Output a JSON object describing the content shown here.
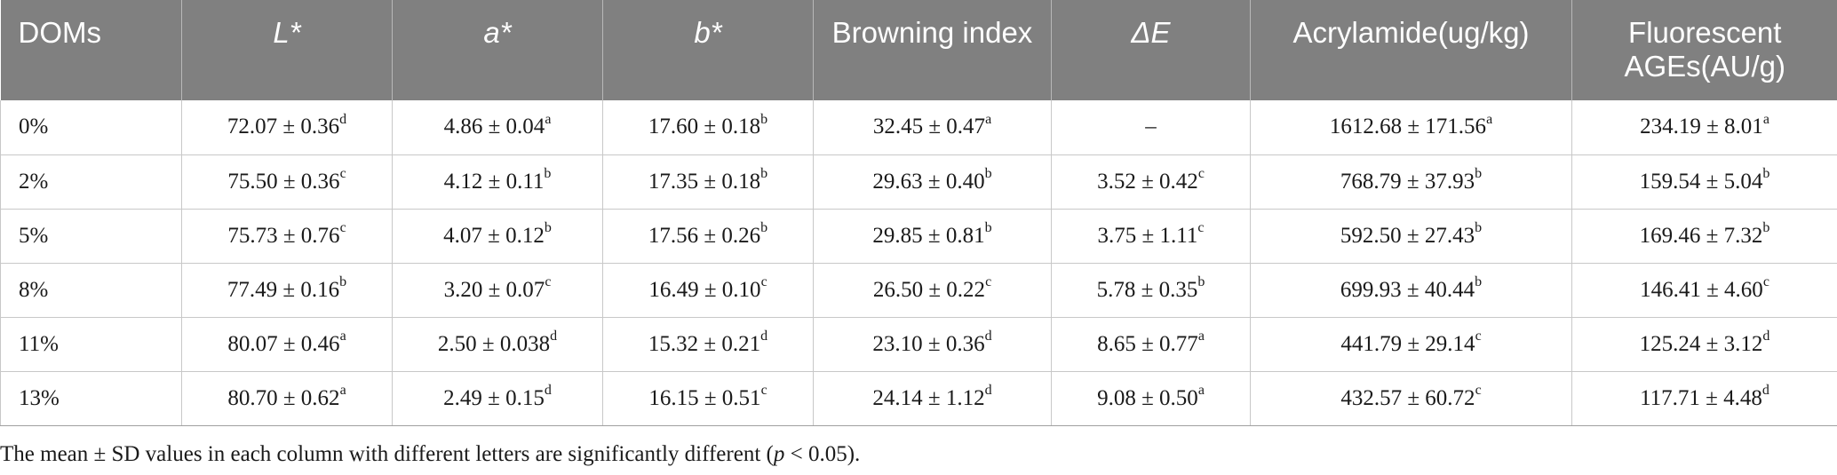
{
  "table": {
    "headers": [
      {
        "text": "DOMs",
        "italic": false,
        "align": "left"
      },
      {
        "text": "L*",
        "italic": true,
        "align": "center"
      },
      {
        "text": "a*",
        "italic": true,
        "align": "center"
      },
      {
        "text": "b*",
        "italic": true,
        "align": "center"
      },
      {
        "text": "Browning index",
        "italic": false,
        "align": "center"
      },
      {
        "text": "ΔE",
        "italic": true,
        "align": "center"
      },
      {
        "text": "Acrylamide(ug/kg)",
        "italic": false,
        "align": "center"
      },
      {
        "text": "Fluorescent AGEs(AU/g)",
        "italic": false,
        "align": "center"
      }
    ],
    "rows": [
      {
        "dom": "0%",
        "cells": [
          {
            "value": "72.07 ± 0.36",
            "sup": "d"
          },
          {
            "value": "4.86 ± 0.04",
            "sup": "a"
          },
          {
            "value": "17.60 ± 0.18",
            "sup": "b"
          },
          {
            "value": "32.45 ± 0.47",
            "sup": "a"
          },
          {
            "value": "–",
            "sup": ""
          },
          {
            "value": "1612.68 ± 171.56",
            "sup": "a"
          },
          {
            "value": "234.19 ± 8.01",
            "sup": "a"
          }
        ]
      },
      {
        "dom": "2%",
        "cells": [
          {
            "value": "75.50 ± 0.36",
            "sup": "c"
          },
          {
            "value": "4.12 ± 0.11",
            "sup": "b"
          },
          {
            "value": "17.35 ± 0.18",
            "sup": "b"
          },
          {
            "value": "29.63 ± 0.40",
            "sup": "b"
          },
          {
            "value": "3.52 ± 0.42",
            "sup": "c"
          },
          {
            "value": "768.79 ± 37.93",
            "sup": "b"
          },
          {
            "value": "159.54 ± 5.04",
            "sup": "b"
          }
        ]
      },
      {
        "dom": "5%",
        "cells": [
          {
            "value": "75.73 ± 0.76",
            "sup": "c"
          },
          {
            "value": "4.07 ± 0.12",
            "sup": "b"
          },
          {
            "value": "17.56 ± 0.26",
            "sup": "b"
          },
          {
            "value": "29.85 ± 0.81",
            "sup": "b"
          },
          {
            "value": "3.75 ± 1.11",
            "sup": "c"
          },
          {
            "value": "592.50 ± 27.43",
            "sup": "b"
          },
          {
            "value": "169.46 ± 7.32",
            "sup": "b"
          }
        ]
      },
      {
        "dom": "8%",
        "cells": [
          {
            "value": "77.49 ± 0.16",
            "sup": "b"
          },
          {
            "value": "3.20 ± 0.07",
            "sup": "c"
          },
          {
            "value": "16.49 ± 0.10",
            "sup": "c"
          },
          {
            "value": "26.50 ± 0.22",
            "sup": "c"
          },
          {
            "value": "5.78 ± 0.35",
            "sup": "b"
          },
          {
            "value": "699.93 ± 40.44",
            "sup": "b"
          },
          {
            "value": "146.41 ± 4.60",
            "sup": "c"
          }
        ]
      },
      {
        "dom": "11%",
        "cells": [
          {
            "value": "80.07 ± 0.46",
            "sup": "a"
          },
          {
            "value": "2.50 ± 0.038",
            "sup": "d"
          },
          {
            "value": "15.32 ± 0.21",
            "sup": "d"
          },
          {
            "value": "23.10 ± 0.36",
            "sup": "d"
          },
          {
            "value": "8.65 ± 0.77",
            "sup": "a"
          },
          {
            "value": "441.79 ± 29.14",
            "sup": "c"
          },
          {
            "value": "125.24 ± 3.12",
            "sup": "d"
          }
        ]
      },
      {
        "dom": "13%",
        "cells": [
          {
            "value": "80.70 ± 0.62",
            "sup": "a"
          },
          {
            "value": "2.49 ± 0.15",
            "sup": "d"
          },
          {
            "value": "16.15 ± 0.51",
            "sup": "c"
          },
          {
            "value": "24.14 ± 1.12",
            "sup": "d"
          },
          {
            "value": "9.08 ± 0.50",
            "sup": "a"
          },
          {
            "value": "432.57 ± 60.72",
            "sup": "c"
          },
          {
            "value": "117.71 ± 4.48",
            "sup": "d"
          }
        ]
      }
    ]
  },
  "footnote": {
    "before": "The mean ± SD values in each column with different letters are significantly different (",
    "italic": "p",
    "after": " < 0.05)."
  },
  "colors": {
    "header_bg": "#808080",
    "header_text": "#ffffff",
    "grid": "#c8c8c8"
  }
}
